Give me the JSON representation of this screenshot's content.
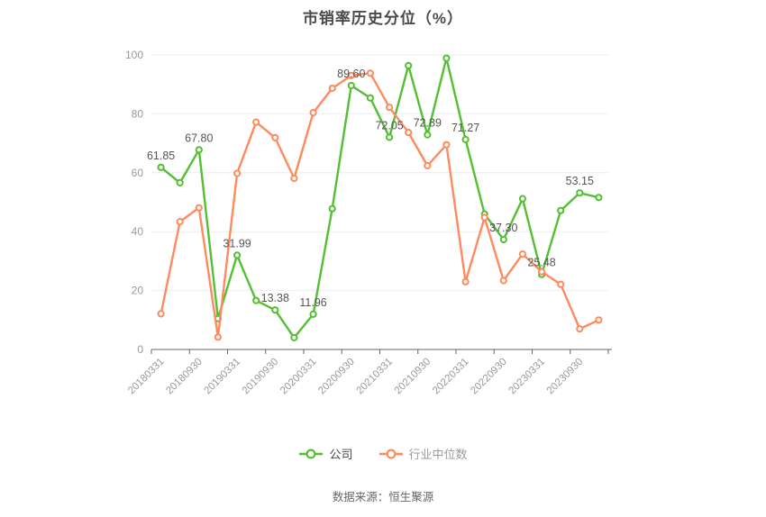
{
  "chart_data": {
    "type": "line",
    "title": "市销率历史分位（%）",
    "title_color": "#4a4a4a",
    "grid": true,
    "legend_position": "bottom",
    "ylim": [
      0,
      100
    ],
    "y_ticks": [
      "0",
      "20",
      "40",
      "60",
      "80",
      "100"
    ],
    "x_tick_labels": [
      "20180331",
      "20180930",
      "20190331",
      "20190930",
      "20200331",
      "20200930",
      "20210331",
      "20210930",
      "20220331",
      "20220930",
      "20230331",
      "20230930"
    ],
    "points_per_tick": 2,
    "n_points": 24,
    "axis_color": "#666666",
    "grid_color": "#e8eef4",
    "tick_label_color": "#999999",
    "data_label_color": "#555555",
    "series": [
      {
        "name": "公司",
        "color": "#54BF32",
        "legend_label_color": "#454545",
        "values": [
          61.85,
          56.6,
          67.8,
          10.5,
          31.99,
          16.6,
          13.38,
          4.0,
          11.96,
          47.8,
          89.6,
          85.4,
          72.05,
          96.4,
          72.89,
          98.9,
          71.27,
          46.0,
          37.3,
          51.2,
          25.48,
          47.2,
          53.15,
          51.6
        ],
        "point_labels": {
          "0": "61.85",
          "2": "67.80",
          "4": "31.99",
          "6": "13.38",
          "8": "11.96",
          "10": "89.60",
          "12": "72.05",
          "14": "72.89",
          "16": "71.27",
          "18": "37.30",
          "20": "25.48",
          "22": "53.15"
        }
      },
      {
        "name": "行业中位数",
        "color": "#FF8A5E",
        "legend_label_color": "#9b9b9b",
        "values": [
          12.1,
          43.4,
          48.1,
          4.2,
          59.8,
          77.2,
          71.9,
          58.1,
          80.4,
          88.7,
          93.0,
          93.8,
          82.2,
          73.7,
          62.4,
          69.5,
          23.0,
          44.8,
          23.4,
          32.4,
          26.4,
          22.1,
          7.0,
          10.0
        ],
        "point_labels": {}
      }
    ]
  },
  "footer": {
    "source_text": "数据来源：恒生聚源"
  }
}
